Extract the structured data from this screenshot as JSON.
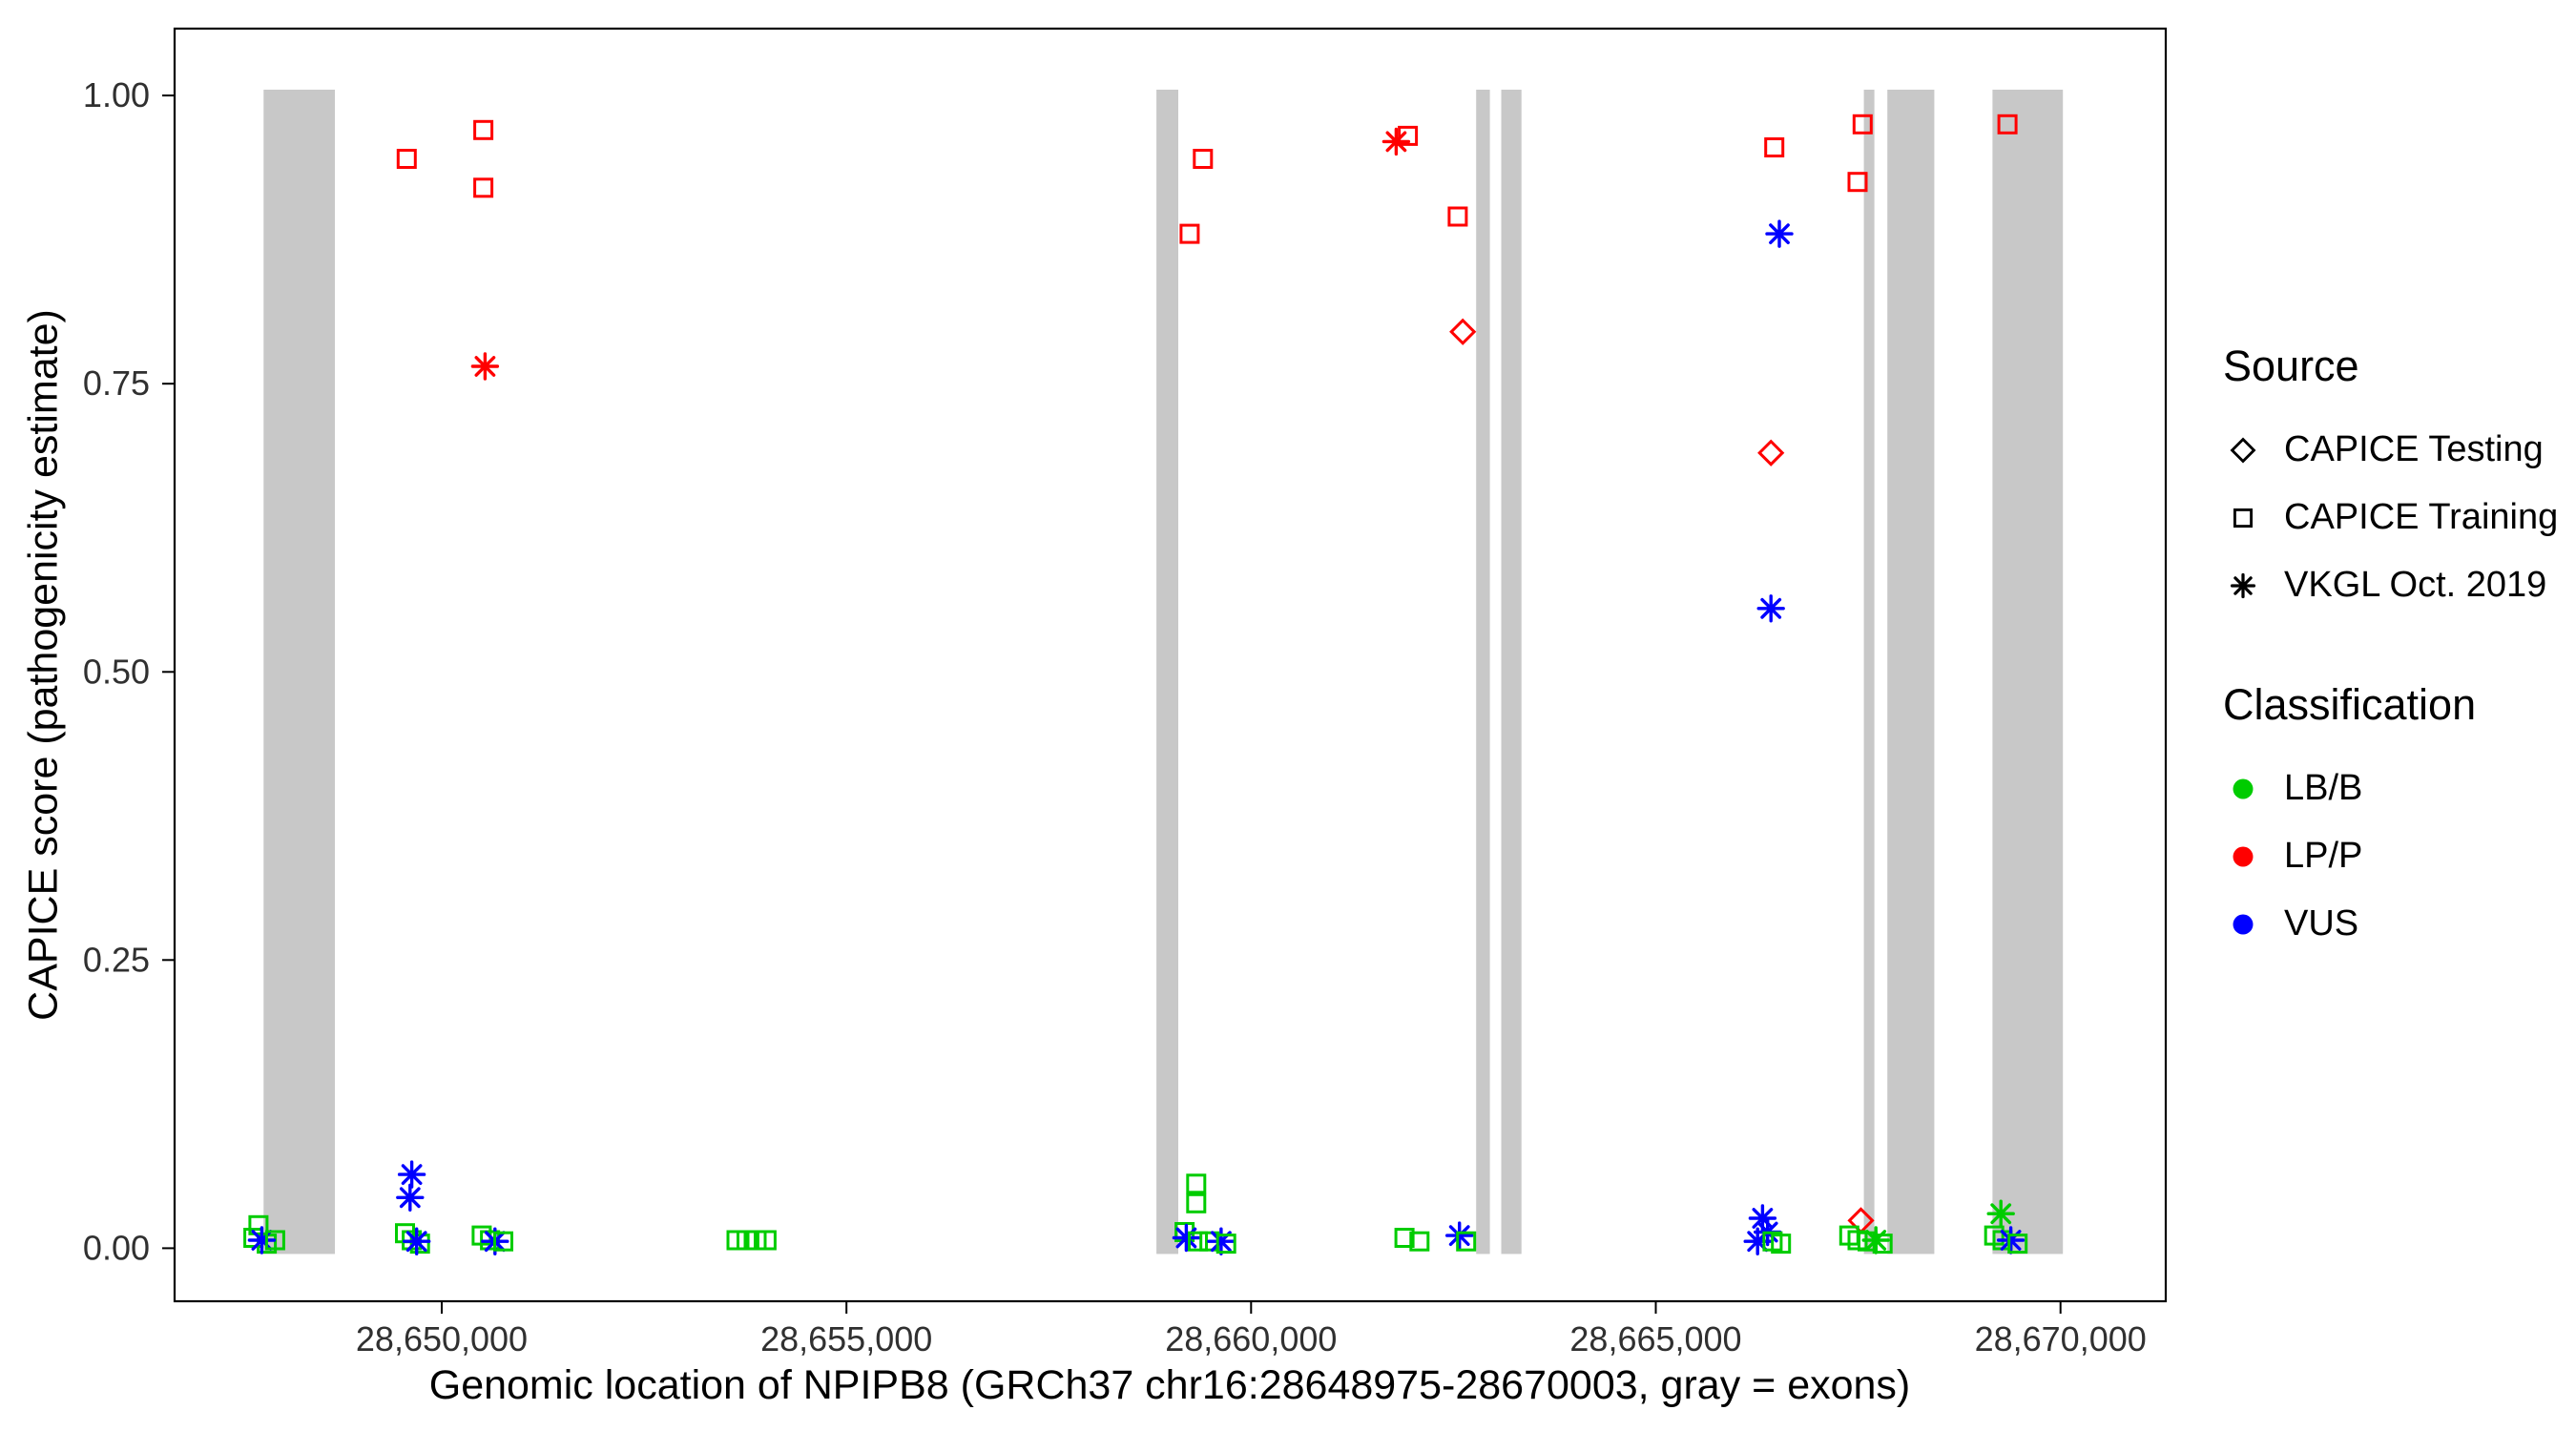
{
  "figure": {
    "background": "#FFFFFF",
    "panel_border_color": "#000000",
    "tick_label_color": "#303030"
  },
  "legend": {
    "source": {
      "title": "Source",
      "items": [
        {
          "label": "CAPICE Testing",
          "shape": "diamond"
        },
        {
          "label": "CAPICE Training",
          "shape": "square"
        },
        {
          "label": "VKGL Oct. 2019",
          "shape": "asterisk"
        }
      ]
    },
    "classification": {
      "title": "Classification",
      "items": [
        {
          "label": "LB/B",
          "color": "#00CC00"
        },
        {
          "label": "LP/P",
          "color": "#FF0000"
        },
        {
          "label": "VUS",
          "color": "#0000FF"
        }
      ]
    }
  },
  "chart_data": {
    "type": "scatter",
    "title": "",
    "xlabel": "Genomic location of NPIPB8 (GRCh37 chr16:28648975-28670003, gray = exons)",
    "ylabel": "CAPICE score (pathogenicity estimate)",
    "x_range": [
      28646700,
      28671300
    ],
    "y_range": [
      -0.046,
      1.058
    ],
    "x_ticks": [
      28650000,
      28655000,
      28660000,
      28665000,
      28670000
    ],
    "x_tick_labels": [
      "28,650,000",
      "28,655,000",
      "28,660,000",
      "28,665,000",
      "28,670,000"
    ],
    "y_ticks": [
      0,
      0.25,
      0.5,
      0.75,
      1.0
    ],
    "y_tick_labels": [
      "0.00",
      "0.25",
      "0.50",
      "0.75",
      "1.00"
    ],
    "grid": false,
    "legend_position": "right",
    "exon_color": "#C8C8C8",
    "exon_y_span": [
      -0.005,
      1.005
    ],
    "exons": [
      [
        28647800,
        28648680
      ],
      [
        28658830,
        28659100
      ],
      [
        28662780,
        28662950
      ],
      [
        28663090,
        28663340
      ],
      [
        28667570,
        28667700
      ],
      [
        28667860,
        28668440
      ],
      [
        28669160,
        28670030
      ]
    ],
    "source_shapes": {
      "CAPICE Testing": "diamond",
      "CAPICE Training": "square",
      "VKGL Oct. 2019": "asterisk"
    },
    "classification_colors": {
      "LB/B": "#00CC00",
      "LP/P": "#FF0000",
      "VUS": "#0000FF"
    },
    "points": [
      {
        "x": 28649568,
        "y": 0.945,
        "source": "CAPICE Training",
        "classification": "LP/P"
      },
      {
        "x": 28650514,
        "y": 0.97,
        "source": "CAPICE Training",
        "classification": "LP/P"
      },
      {
        "x": 28650514,
        "y": 0.92,
        "source": "CAPICE Training",
        "classification": "LP/P"
      },
      {
        "x": 28650535,
        "y": 0.765,
        "source": "VKGL Oct. 2019",
        "classification": "LP/P"
      },
      {
        "x": 28659404,
        "y": 0.945,
        "source": "CAPICE Training",
        "classification": "LP/P"
      },
      {
        "x": 28659240,
        "y": 0.88,
        "source": "CAPICE Training",
        "classification": "LP/P"
      },
      {
        "x": 28661936,
        "y": 0.965,
        "source": "CAPICE Training",
        "classification": "LP/P"
      },
      {
        "x": 28661792,
        "y": 0.96,
        "source": "VKGL Oct. 2019",
        "classification": "LP/P"
      },
      {
        "x": 28662553,
        "y": 0.895,
        "source": "CAPICE Training",
        "classification": "LP/P"
      },
      {
        "x": 28662615,
        "y": 0.795,
        "source": "CAPICE Testing",
        "classification": "LP/P"
      },
      {
        "x": 28666464,
        "y": 0.955,
        "source": "CAPICE Training",
        "classification": "LP/P"
      },
      {
        "x": 28667555,
        "y": 0.975,
        "source": "CAPICE Training",
        "classification": "LP/P"
      },
      {
        "x": 28667493,
        "y": 0.925,
        "source": "CAPICE Training",
        "classification": "LP/P"
      },
      {
        "x": 28666423,
        "y": 0.69,
        "source": "CAPICE Testing",
        "classification": "LP/P"
      },
      {
        "x": 28669345,
        "y": 0.975,
        "source": "CAPICE Training",
        "classification": "LP/P"
      },
      {
        "x": 28666526,
        "y": 0.88,
        "source": "VKGL Oct. 2019",
        "classification": "VUS"
      },
      {
        "x": 28666423,
        "y": 0.555,
        "source": "VKGL Oct. 2019",
        "classification": "VUS"
      },
      {
        "x": 28647736,
        "y": 0.02,
        "source": "CAPICE Training",
        "classification": "LB/B"
      },
      {
        "x": 28647674,
        "y": 0.009,
        "source": "CAPICE Training",
        "classification": "LB/B"
      },
      {
        "x": 28647839,
        "y": 0.004,
        "source": "CAPICE Training",
        "classification": "LB/B"
      },
      {
        "x": 28647777,
        "y": 0.007,
        "source": "VKGL Oct. 2019",
        "classification": "VUS"
      },
      {
        "x": 28647942,
        "y": 0.007,
        "source": "CAPICE Training",
        "classification": "LB/B"
      },
      {
        "x": 28649630,
        "y": 0.064,
        "source": "VKGL Oct. 2019",
        "classification": "VUS"
      },
      {
        "x": 28649609,
        "y": 0.044,
        "source": "VKGL Oct. 2019",
        "classification": "VUS"
      },
      {
        "x": 28649547,
        "y": 0.013,
        "source": "CAPICE Training",
        "classification": "LB/B"
      },
      {
        "x": 28649630,
        "y": 0.007,
        "source": "CAPICE Training",
        "classification": "LB/B"
      },
      {
        "x": 28649732,
        "y": 0.004,
        "source": "CAPICE Training",
        "classification": "LB/B"
      },
      {
        "x": 28649691,
        "y": 0.006,
        "source": "VKGL Oct. 2019",
        "classification": "VUS"
      },
      {
        "x": 28650494,
        "y": 0.011,
        "source": "CAPICE Training",
        "classification": "LB/B"
      },
      {
        "x": 28650597,
        "y": 0.007,
        "source": "CAPICE Training",
        "classification": "LB/B"
      },
      {
        "x": 28650658,
        "y": 0.006,
        "source": "VKGL Oct. 2019",
        "classification": "VUS"
      },
      {
        "x": 28650761,
        "y": 0.006,
        "source": "CAPICE Training",
        "classification": "LB/B"
      },
      {
        "x": 28653643,
        "y": 0.007,
        "source": "CAPICE Training",
        "classification": "LB/B"
      },
      {
        "x": 28653766,
        "y": 0.007,
        "source": "CAPICE Training",
        "classification": "LB/B"
      },
      {
        "x": 28653890,
        "y": 0.007,
        "source": "CAPICE Training",
        "classification": "LB/B"
      },
      {
        "x": 28654013,
        "y": 0.007,
        "source": "CAPICE Training",
        "classification": "LB/B"
      },
      {
        "x": 28659322,
        "y": 0.056,
        "source": "CAPICE Training",
        "classification": "LB/B"
      },
      {
        "x": 28659322,
        "y": 0.039,
        "source": "CAPICE Training",
        "classification": "LB/B"
      },
      {
        "x": 28659178,
        "y": 0.014,
        "source": "CAPICE Training",
        "classification": "LB/B"
      },
      {
        "x": 28659199,
        "y": 0.009,
        "source": "VKGL Oct. 2019",
        "classification": "VUS"
      },
      {
        "x": 28659342,
        "y": 0.006,
        "source": "CAPICE Training",
        "classification": "LB/B"
      },
      {
        "x": 28659486,
        "y": 0.006,
        "source": "CAPICE Training",
        "classification": "LB/B"
      },
      {
        "x": 28659630,
        "y": 0.006,
        "source": "VKGL Oct. 2019",
        "classification": "VUS"
      },
      {
        "x": 28659692,
        "y": 0.004,
        "source": "CAPICE Training",
        "classification": "LB/B"
      },
      {
        "x": 28661895,
        "y": 0.009,
        "source": "CAPICE Training",
        "classification": "LB/B"
      },
      {
        "x": 28662080,
        "y": 0.006,
        "source": "CAPICE Training",
        "classification": "LB/B"
      },
      {
        "x": 28662574,
        "y": 0.011,
        "source": "VKGL Oct. 2019",
        "classification": "VUS"
      },
      {
        "x": 28662656,
        "y": 0.006,
        "source": "CAPICE Training",
        "classification": "LB/B"
      },
      {
        "x": 28666319,
        "y": 0.026,
        "source": "VKGL Oct. 2019",
        "classification": "VUS"
      },
      {
        "x": 28666381,
        "y": 0.014,
        "source": "VKGL Oct. 2019",
        "classification": "VUS"
      },
      {
        "x": 28666257,
        "y": 0.006,
        "source": "VKGL Oct. 2019",
        "classification": "VUS"
      },
      {
        "x": 28666443,
        "y": 0.006,
        "source": "CAPICE Training",
        "classification": "LB/B"
      },
      {
        "x": 28666546,
        "y": 0.004,
        "source": "CAPICE Training",
        "classification": "LB/B"
      },
      {
        "x": 28667534,
        "y": 0.024,
        "source": "CAPICE Testing",
        "classification": "LP/P"
      },
      {
        "x": 28667390,
        "y": 0.011,
        "source": "CAPICE Training",
        "classification": "LB/B"
      },
      {
        "x": 28667493,
        "y": 0.007,
        "source": "CAPICE Training",
        "classification": "LB/B"
      },
      {
        "x": 28667617,
        "y": 0.006,
        "source": "CAPICE Training",
        "classification": "LB/B"
      },
      {
        "x": 28667719,
        "y": 0.007,
        "source": "VKGL Oct. 2019",
        "classification": "LB/B"
      },
      {
        "x": 28667801,
        "y": 0.004,
        "source": "CAPICE Training",
        "classification": "LB/B"
      },
      {
        "x": 28669263,
        "y": 0.03,
        "source": "VKGL Oct. 2019",
        "classification": "LB/B"
      },
      {
        "x": 28669181,
        "y": 0.011,
        "source": "CAPICE Training",
        "classification": "LB/B"
      },
      {
        "x": 28669284,
        "y": 0.007,
        "source": "CAPICE Training",
        "classification": "LB/B"
      },
      {
        "x": 28669386,
        "y": 0.007,
        "source": "VKGL Oct. 2019",
        "classification": "VUS"
      },
      {
        "x": 28669469,
        "y": 0.004,
        "source": "CAPICE Training",
        "classification": "LB/B"
      }
    ]
  }
}
